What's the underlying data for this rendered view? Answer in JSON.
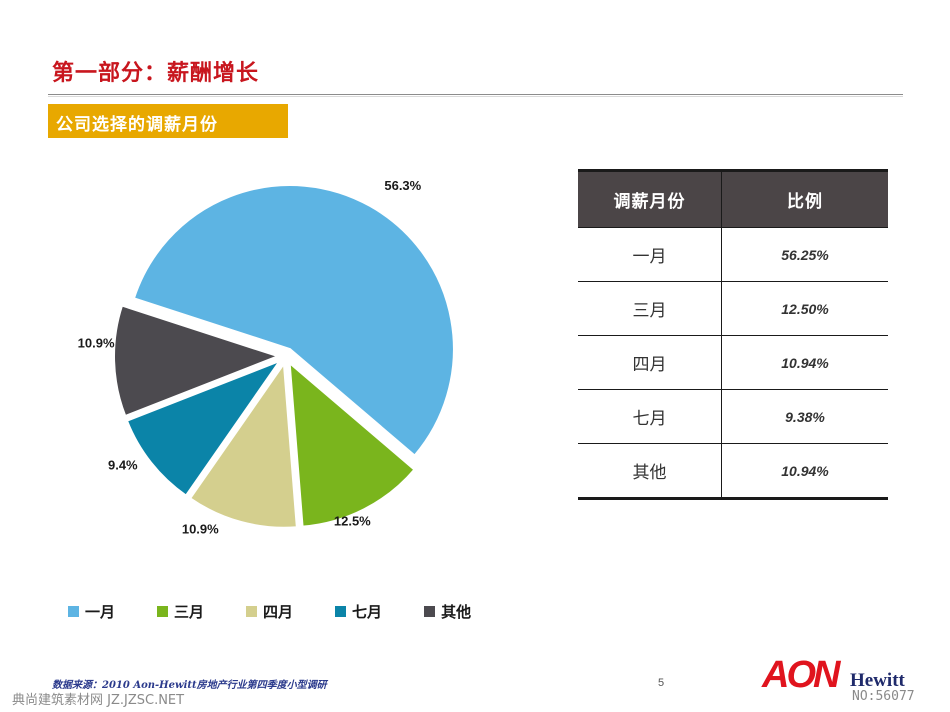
{
  "header": {
    "title": "第一部分：薪酬增长",
    "subtitle": "公司选择的调薪月份"
  },
  "chart_data": {
    "type": "pie",
    "categories": [
      "一月",
      "三月",
      "四月",
      "七月",
      "其他"
    ],
    "values": [
      56.25,
      12.5,
      10.94,
      9.38,
      10.94
    ],
    "data_labels": [
      "56.3%",
      "12.5%",
      "10.9%",
      "9.4%",
      "10.9%"
    ],
    "colors": [
      "#5db4e3",
      "#7ab51d",
      "#d4cf8e",
      "#0b84a8",
      "#4c4a4f"
    ],
    "legend_position": "bottom",
    "exploded": true
  },
  "table": {
    "headers": [
      "调薪月份",
      "比例"
    ],
    "rows": [
      {
        "month": "一月",
        "ratio": "56.25%"
      },
      {
        "month": "三月",
        "ratio": "12.50%"
      },
      {
        "month": "四月",
        "ratio": "10.94%"
      },
      {
        "month": "七月",
        "ratio": "9.38%"
      },
      {
        "month": "其他",
        "ratio": "10.94%"
      }
    ]
  },
  "footer": {
    "source": "数据来源：2010 Aon-Hewitt房地产行业第四季度小型调研",
    "page_number": "5",
    "logo_aon": "AON",
    "logo_hewitt": "Hewitt",
    "watermark_left": "典尚建筑素材网 JZ.JZSC.NET",
    "watermark_right": "NO:56077"
  }
}
